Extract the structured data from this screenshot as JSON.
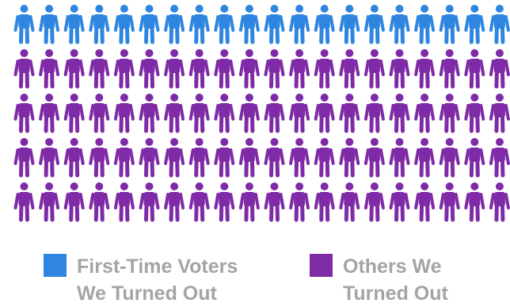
{
  "chart_data": {
    "type": "pictograph",
    "icon": "person-icon",
    "title": "",
    "total_icons": 100,
    "series": [
      {
        "name": "First-Time Voters\nWe Turned Out",
        "value": 20,
        "color": "#2e86e0"
      },
      {
        "name": "Others We\nTurned Out",
        "value": 80,
        "color": "#7f2aa6"
      }
    ]
  }
}
